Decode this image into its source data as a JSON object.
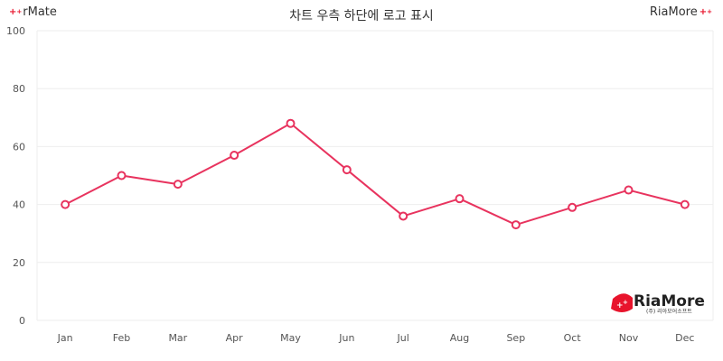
{
  "header": {
    "left_brand": "rMate",
    "right_brand": "RiaMore",
    "title": "차트 우측 하단에 로고 표시"
  },
  "logo": {
    "name": "RiaMore",
    "subtitle": "(주) 리아모어소프트",
    "color": "#e8142c"
  },
  "chart_data": {
    "type": "line",
    "title": "차트 우측 하단에 로고 표시",
    "categories": [
      "Jan",
      "Feb",
      "Mar",
      "Apr",
      "May",
      "Jun",
      "Jul",
      "Aug",
      "Sep",
      "Oct",
      "Nov",
      "Dec"
    ],
    "series": [
      {
        "values": [
          40,
          50,
          47,
          57,
          68,
          52,
          36,
          42,
          33,
          39,
          45,
          40
        ]
      }
    ],
    "ylim": [
      0,
      100
    ],
    "yticks": [
      0,
      20,
      40,
      60,
      80,
      100
    ],
    "grid": true,
    "legend": "none",
    "line_color": "#e8335e",
    "grid_color": "#eeeeee"
  }
}
